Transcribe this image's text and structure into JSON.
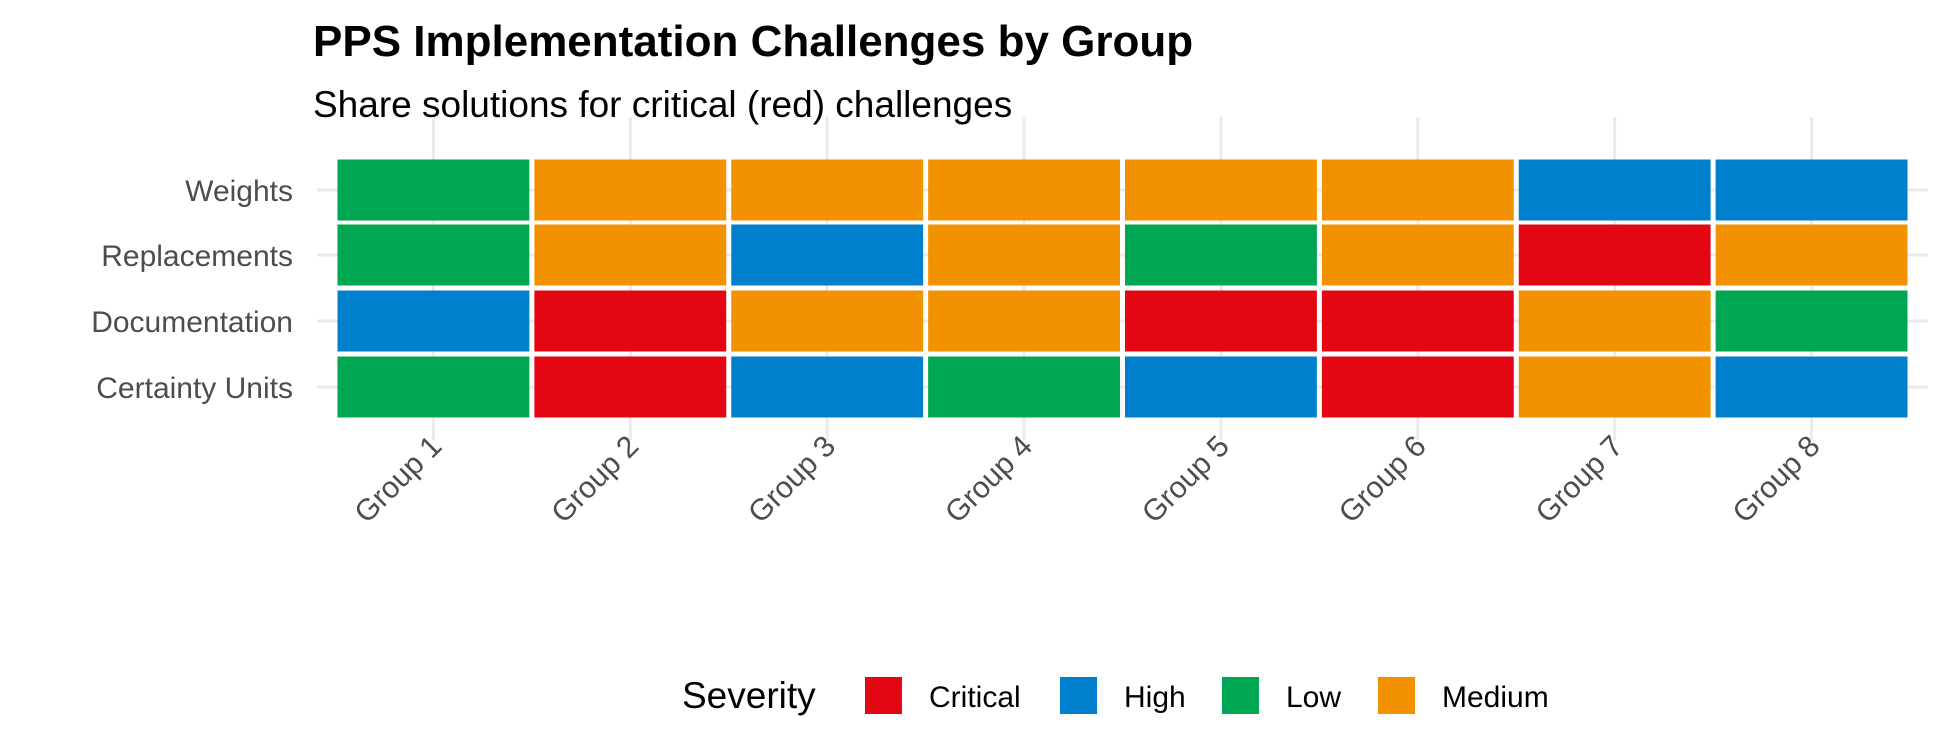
{
  "chart_data": {
    "type": "heatmap",
    "title": "PPS Implementation Challenges by Group",
    "subtitle": "Share solutions for critical (red) challenges",
    "xlabel": "",
    "ylabel": "",
    "x_categories": [
      "Group 1",
      "Group 2",
      "Group 3",
      "Group 4",
      "Group 5",
      "Group 6",
      "Group 7",
      "Group 8"
    ],
    "y_categories": [
      "Weights",
      "Replacements",
      "Documentation",
      "Certainty Units"
    ],
    "cells": [
      [
        "Low",
        "Medium",
        "Medium",
        "Medium",
        "Medium",
        "Medium",
        "High",
        "High"
      ],
      [
        "Low",
        "Medium",
        "High",
        "Medium",
        "Low",
        "Medium",
        "Critical",
        "Medium"
      ],
      [
        "High",
        "Critical",
        "Medium",
        "Medium",
        "Critical",
        "Critical",
        "Medium",
        "Low"
      ],
      [
        "Low",
        "Critical",
        "High",
        "Low",
        "High",
        "Critical",
        "Medium",
        "High"
      ]
    ],
    "legend": {
      "title": "Severity",
      "position": "bottom",
      "items": [
        {
          "label": "Critical",
          "color": "#E30613"
        },
        {
          "label": "High",
          "color": "#0080CC"
        },
        {
          "label": "Low",
          "color": "#00A651"
        },
        {
          "label": "Medium",
          "color": "#F39200"
        }
      ]
    },
    "grid": true,
    "grid_color": "#ebebeb",
    "tile_border_color": "#ffffff"
  }
}
